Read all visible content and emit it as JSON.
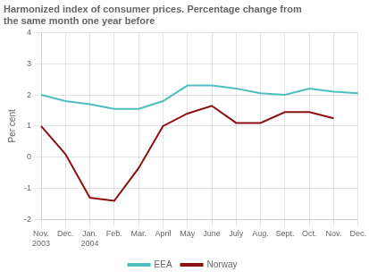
{
  "chart_data": {
    "type": "line",
    "title": "Harmonized index of consumer prices. Percentage change from\nthe same month one year before",
    "y_label": "Per cent",
    "categories": [
      "Nov.\n2003",
      "Dec.",
      "Jan.\n2004",
      "Feb.",
      "Mar.",
      "April",
      "May",
      "June",
      "July",
      "Aug.",
      "Sept.",
      "Oct.",
      "Nov.",
      "Dec."
    ],
    "series": [
      {
        "name": "EEA",
        "color": "#4DBFBF",
        "values": [
          2.0,
          1.8,
          1.7,
          1.55,
          1.55,
          1.8,
          2.3,
          2.3,
          2.2,
          2.05,
          2.0,
          2.2,
          2.1,
          2.05
        ]
      },
      {
        "name": "Norway",
        "color": "#8B1010",
        "values": [
          1.0,
          0.1,
          -1.3,
          -1.4,
          -0.35,
          1.0,
          1.4,
          1.65,
          1.1,
          1.1,
          1.45,
          1.45,
          1.25,
          null
        ]
      }
    ],
    "ylim": [
      -2,
      4
    ],
    "yticks": [
      -2,
      -1,
      0,
      1,
      2,
      3,
      4
    ],
    "grid": true,
    "legend": "bottom"
  }
}
